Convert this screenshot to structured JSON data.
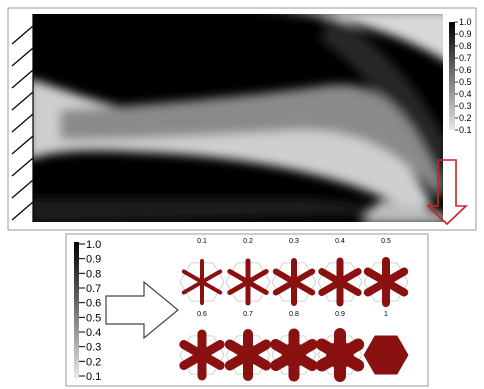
{
  "colorbar_ticks": [
    "1.0",
    "0.9",
    "0.8",
    "0.7",
    "0.6",
    "0.5",
    "0.4",
    "0.3",
    "0.2",
    "0.1"
  ],
  "top_colorbar_ticks": [
    "1.0",
    "0.9",
    "0.8",
    "0.7",
    "0.6",
    "0.5",
    "0.4",
    "0.3",
    "0.2",
    "0.1"
  ],
  "cell_labels": [
    "0.1",
    "0.2",
    "0.3",
    "0.4",
    "0.5",
    "0.6",
    "0.7",
    "0.8",
    "0.9",
    "1"
  ],
  "colors": {
    "material_red": "#8b1010",
    "load_arrow": "#d22020",
    "frame": "#9a9a9a"
  },
  "icons": {
    "load": "down-arrow-icon",
    "support": "hatched-support-icon",
    "mapping": "right-arrow-icon"
  }
}
